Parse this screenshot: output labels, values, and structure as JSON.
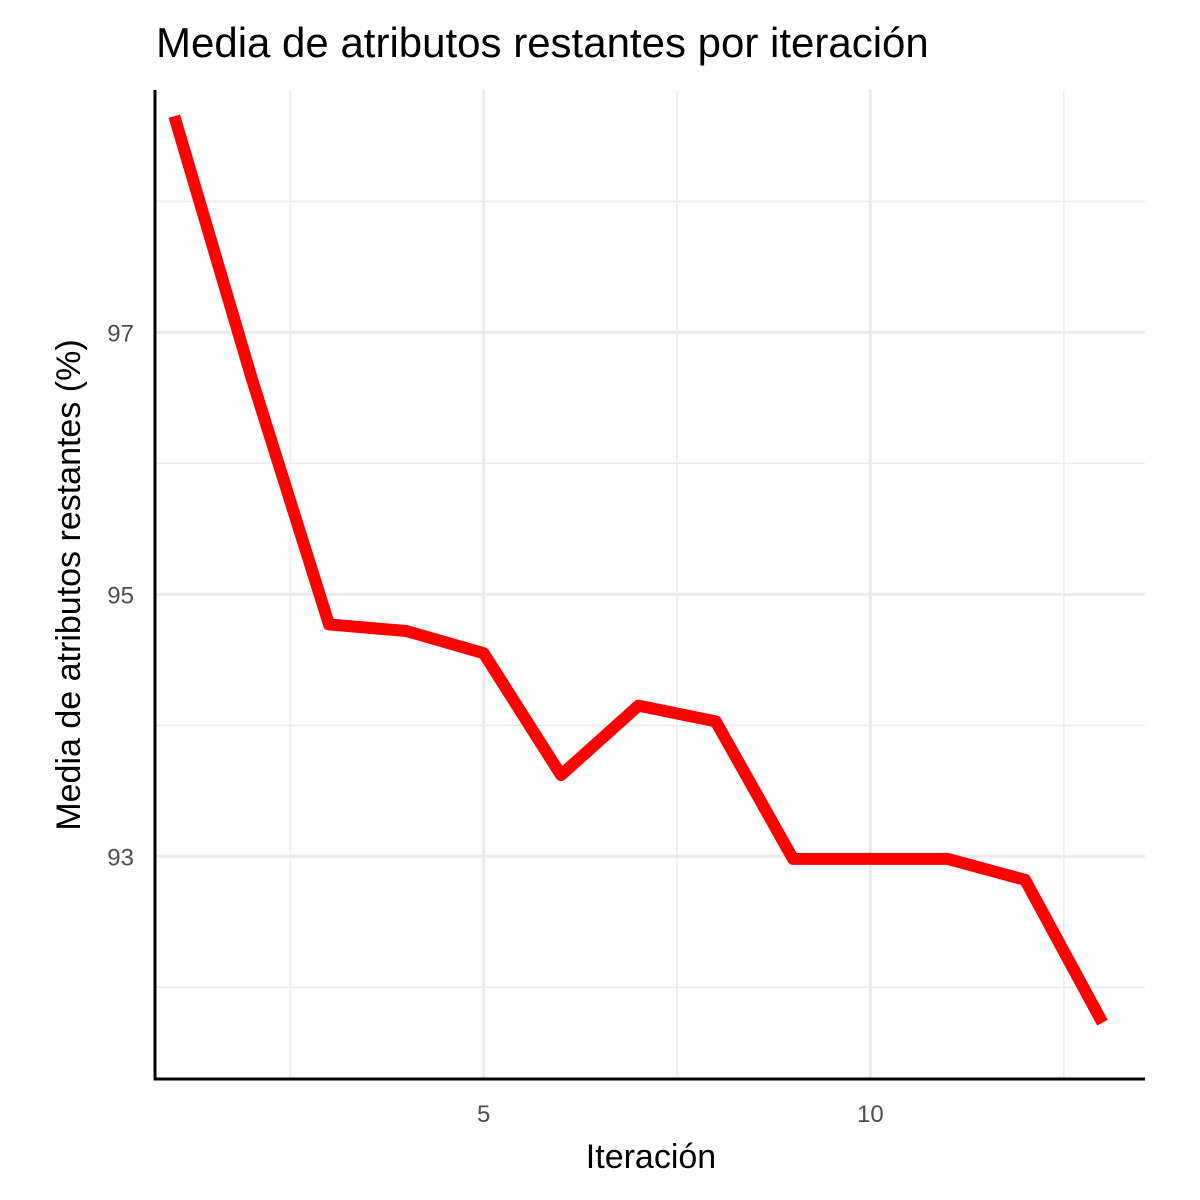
{
  "chart_data": {
    "type": "line",
    "title": "Media de atributos restantes por iteración",
    "xlabel": "Iteración",
    "ylabel": "Media de atributos restantes (%)",
    "x": [
      1,
      2,
      3,
      4,
      5,
      6,
      7,
      8,
      9,
      10,
      11,
      12,
      13
    ],
    "series": [
      {
        "values": [
          98.65,
          96.65,
          94.77,
          94.72,
          94.55,
          93.62,
          94.15,
          94.03,
          92.98,
          92.98,
          92.98,
          92.82,
          91.73
        ]
      }
    ],
    "xlim": [
      0.75,
      13.55
    ],
    "ylim": [
      91.3,
      98.85
    ],
    "x_ticks": [
      5,
      10
    ],
    "x_tick_labels": [
      "5",
      "10"
    ],
    "x_minor_ticks": [
      2.5,
      7.5,
      12.5
    ],
    "y_ticks": [
      93,
      95,
      97
    ],
    "y_tick_labels": [
      "93",
      "95",
      "97"
    ],
    "y_minor_ticks": [
      92,
      94,
      96,
      98
    ],
    "grid": true,
    "line_color": "#ff0000"
  }
}
